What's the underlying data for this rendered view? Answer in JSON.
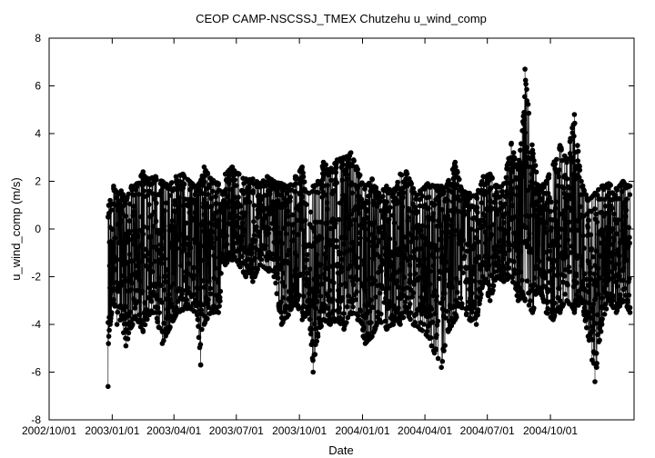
{
  "chart_data": {
    "type": "line",
    "title": "CEOP CAMP-NSCSSJ_TMEX Chutzehu  u_wind_comp",
    "xlabel": "Date",
    "ylabel": "u_wind_comp (m/s)",
    "ylim": [
      -8,
      8
    ],
    "xlim": [
      "2002/10/01",
      "2005/01/31"
    ],
    "grid": false,
    "legend": "none",
    "marker": "filled-circle",
    "series_color": "#000000",
    "x_ticks": [
      "2002/10/01",
      "2003/01/01",
      "2003/04/01",
      "2003/07/01",
      "2003/10/01",
      "2004/01/01",
      "2004/04/01",
      "2004/07/01",
      "2004/10/01"
    ],
    "y_ticks": [
      "-8",
      "-6",
      "-4",
      "-2",
      "0",
      "2",
      "4",
      "6",
      "8"
    ],
    "series": [
      {
        "x": [
          "2002/12/26",
          "2002/12/27",
          "2002/12/29",
          "2002/12/31",
          "2003/01/03",
          "2003/01/08",
          "2003/01/14",
          "2003/01/21",
          "2003/01/29",
          "2003/02/06",
          "2003/02/15",
          "2003/02/24",
          "2003/03/05",
          "2003/03/15",
          "2003/03/25",
          "2003/04/04",
          "2003/04/14",
          "2003/04/24",
          "2003/05/05",
          "2003/05/10",
          "2003/05/15",
          "2003/05/25",
          "2003/06/05",
          "2003/06/15",
          "2003/06/25",
          "2003/07/05",
          "2003/07/15",
          "2003/07/25",
          "2003/08/05",
          "2003/08/15",
          "2003/08/25",
          "2003/09/05",
          "2003/09/15",
          "2003/09/25",
          "2003/10/05",
          "2003/10/15",
          "2003/10/21",
          "2003/10/28",
          "2003/11/05",
          "2003/11/15",
          "2003/11/25",
          "2003/12/05",
          "2003/12/15",
          "2003/12/25",
          "2004/01/05",
          "2004/01/15",
          "2004/01/25",
          "2004/02/05",
          "2004/02/15",
          "2004/02/25",
          "2004/03/05",
          "2004/03/15",
          "2004/03/25",
          "2004/04/05",
          "2004/04/15",
          "2004/04/25",
          "2004/05/05",
          "2004/05/15",
          "2004/05/25",
          "2004/06/05",
          "2004/06/15",
          "2004/06/25",
          "2004/07/05",
          "2004/07/15",
          "2004/07/25",
          "2004/08/05",
          "2004/08/15",
          "2004/08/22",
          "2004/08/25",
          "2004/09/05",
          "2004/09/15",
          "2004/09/25",
          "2004/10/05",
          "2004/10/15",
          "2004/10/25",
          "2004/11/05",
          "2004/11/15",
          "2004/11/25",
          "2004/12/05",
          "2004/12/15",
          "2004/12/25",
          "2005/01/05",
          "2005/01/15",
          "2005/01/25"
        ],
        "min": [
          -6.6,
          -4.5,
          -4.0,
          -3.5,
          -3.0,
          -4.0,
          -3.8,
          -4.9,
          -4.1,
          -3.8,
          -4.3,
          -3.6,
          -3.5,
          -4.8,
          -4.2,
          -3.6,
          -3.4,
          -3.3,
          -3.6,
          -5.7,
          -4.0,
          -3.5,
          -3.5,
          -1.5,
          -1.3,
          -1.5,
          -2.0,
          -2.2,
          -1.5,
          -1.7,
          -2.0,
          -4.0,
          -3.6,
          -3.0,
          -3.8,
          -3.5,
          -6.0,
          -4.5,
          -3.8,
          -4.0,
          -3.8,
          -4.2,
          -3.5,
          -3.8,
          -4.8,
          -4.5,
          -3.8,
          -4.2,
          -4.0,
          -4.0,
          -3.5,
          -4.0,
          -4.2,
          -4.5,
          -5.2,
          -5.8,
          -4.3,
          -3.8,
          -3.3,
          -3.8,
          -4.0,
          -2.2,
          -3.0,
          -2.0,
          -2.2,
          -2.0,
          -3.0,
          -2.8,
          -3.0,
          -3.5,
          -2.5,
          -3.5,
          -3.8,
          -3.5,
          -3.0,
          -3.5,
          -3.0,
          -4.5,
          -6.4,
          -4.0,
          -3.0,
          -3.5,
          -3.0,
          -3.5
        ],
        "max": [
          0.5,
          1.0,
          1.2,
          0.8,
          1.8,
          1.5,
          1.6,
          1.2,
          1.8,
          1.9,
          2.4,
          2.1,
          2.2,
          2.0,
          1.8,
          2.2,
          2.3,
          2.0,
          1.8,
          2.0,
          2.6,
          2.1,
          1.9,
          2.3,
          2.6,
          2.3,
          2.1,
          2.1,
          1.9,
          2.2,
          2.0,
          1.9,
          1.8,
          2.2,
          2.6,
          1.5,
          1.8,
          2.0,
          2.8,
          2.5,
          2.9,
          3.0,
          3.2,
          2.5,
          1.8,
          2.1,
          1.5,
          1.8,
          1.6,
          2.3,
          2.4,
          1.7,
          1.6,
          1.9,
          1.8,
          1.8,
          2.0,
          2.8,
          1.6,
          1.5,
          1.4,
          2.2,
          2.3,
          1.8,
          1.9,
          3.6,
          2.5,
          4.5,
          6.7,
          3.3,
          1.8,
          2.0,
          2.7,
          3.5,
          2.9,
          4.8,
          2.0,
          1.2,
          1.5,
          1.8,
          1.9,
          1.7,
          2.0,
          1.8
        ]
      }
    ]
  }
}
